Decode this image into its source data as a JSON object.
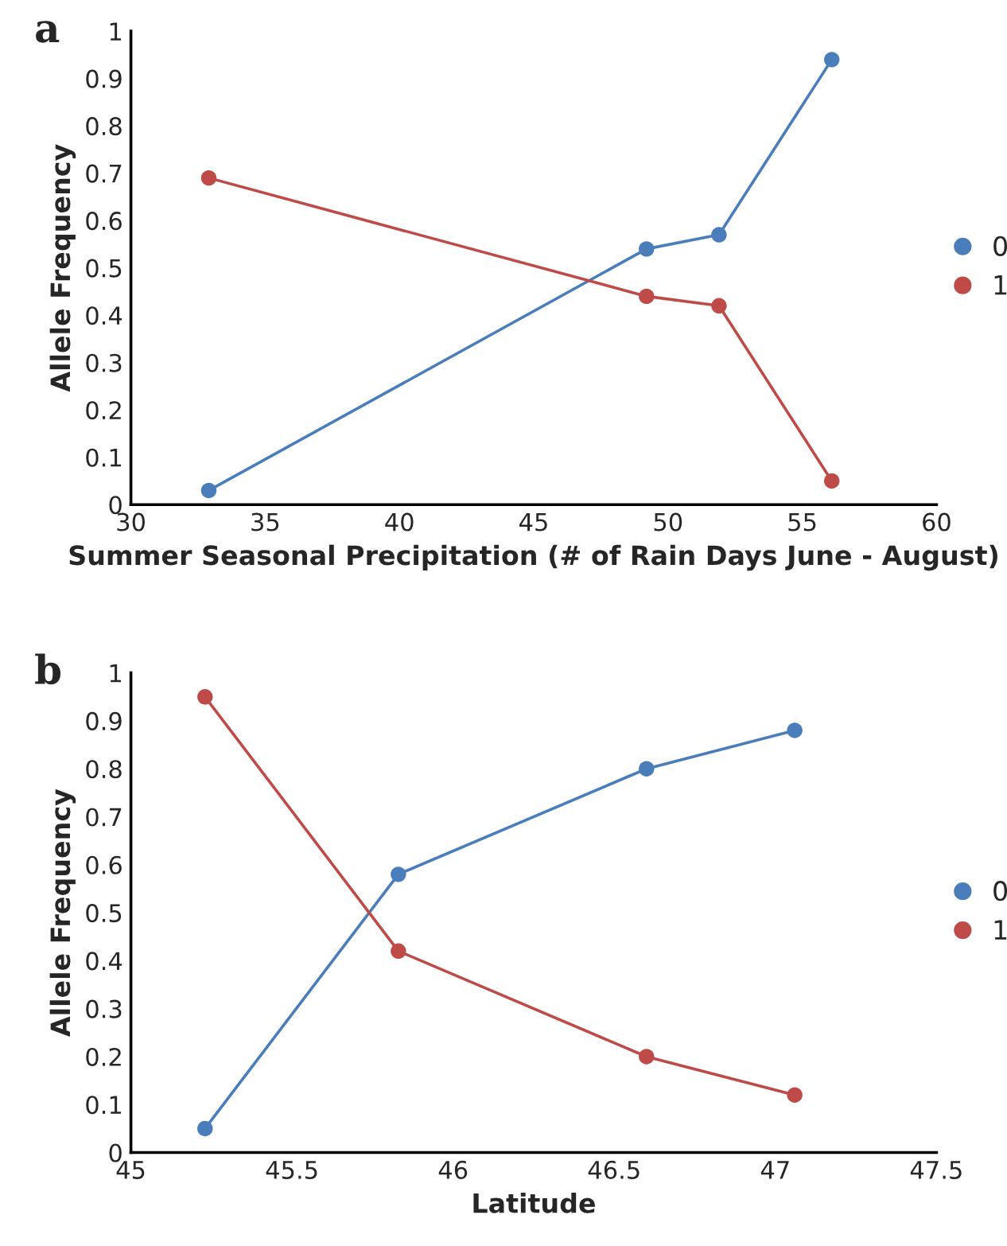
{
  "chart_data": [
    {
      "type": "line",
      "title": "a",
      "xlabel": "Summer Seasonal Precipitation (# of Rain Days June - August)",
      "ylabel": "Allele Frequency",
      "xlim": [
        30,
        60
      ],
      "xticks": [
        30,
        35,
        40,
        45,
        50,
        55,
        60
      ],
      "ylim": [
        0,
        1
      ],
      "yticks": [
        0,
        0.1,
        0.2,
        0.3,
        0.4,
        0.5,
        0.6,
        0.7,
        0.8,
        0.9,
        1
      ],
      "marker": "circle",
      "legend": "right",
      "grid": false,
      "series": [
        {
          "name": "0",
          "color": "#4a7ebb",
          "x": [
            32.9,
            49.2,
            51.9,
            56.1
          ],
          "values": [
            0.03,
            0.54,
            0.57,
            0.94
          ]
        },
        {
          "name": "1",
          "color": "#be4b48",
          "x": [
            32.9,
            49.2,
            51.9,
            56.1
          ],
          "values": [
            0.69,
            0.44,
            0.42,
            0.05
          ]
        }
      ]
    },
    {
      "type": "line",
      "title": "b",
      "xlabel": "Latitude",
      "ylabel": "Allele Frequency",
      "xlim": [
        45,
        47.5
      ],
      "xticks": [
        45,
        45.5,
        46,
        46.5,
        47,
        47.5
      ],
      "ylim": [
        0,
        1
      ],
      "yticks": [
        0,
        0.1,
        0.2,
        0.3,
        0.4,
        0.5,
        0.6,
        0.7,
        0.8,
        0.9,
        1
      ],
      "marker": "circle",
      "legend": "right",
      "grid": false,
      "series": [
        {
          "name": "0",
          "color": "#4a7ebb",
          "x": [
            45.23,
            45.83,
            46.6,
            47.06
          ],
          "values": [
            0.05,
            0.58,
            0.8,
            0.88
          ]
        },
        {
          "name": "1",
          "color": "#be4b48",
          "x": [
            45.23,
            45.83,
            46.6,
            47.06
          ],
          "values": [
            0.95,
            0.42,
            0.2,
            0.12
          ]
        }
      ]
    }
  ]
}
